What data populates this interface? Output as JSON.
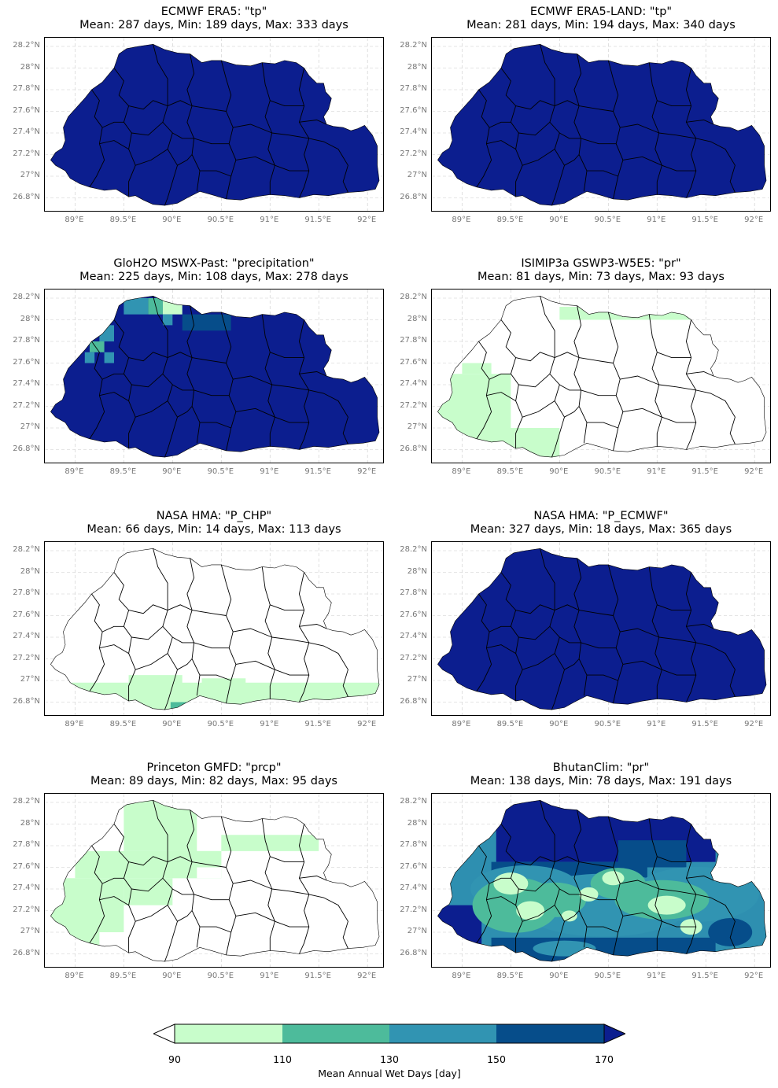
{
  "panels": [
    {
      "line1": "ECMWF ERA5: \"tp\"",
      "line2": "Mean: 287 days, Min: 189 days, Max: 333 days",
      "fill": "#0c1e8f",
      "style": "full"
    },
    {
      "line1": "ECMWF ERA5-LAND: \"tp\"",
      "line2": "Mean: 281 days, Min: 194 days, Max: 340 days",
      "fill": "#0c1e8f",
      "style": "full"
    },
    {
      "line1": "GloH2O MSWX-Past: \"precipitation\"",
      "line2": "Mean: 225 days, Min: 108 days, Max: 278 days",
      "fill": "#0c1e8f",
      "style": "mswx"
    },
    {
      "line1": "ISIMIP3a GSWP3-W5E5: \"pr\"",
      "line2": "Mean: 81 days, Min: 73 days, Max: 93 days",
      "fill": "#ffffff",
      "style": "isimip"
    },
    {
      "line1": "NASA HMA: \"P_CHP\"",
      "line2": "Mean: 66 days, Min: 14 days, Max: 113 days",
      "fill": "#ffffff",
      "style": "chp"
    },
    {
      "line1": "NASA HMA: \"P_ECMWF\"",
      "line2": "Mean: 327 days, Min: 18 days, Max: 365 days",
      "fill": "#0c1e8f",
      "style": "full"
    },
    {
      "line1": "Princeton GMFD: \"prcp\"",
      "line2": "Mean: 89 days, Min: 82 days, Max: 95 days",
      "fill": "#ffffff",
      "style": "gmfd"
    },
    {
      "line1": "BhutanClim: \"pr\"",
      "line2": "Mean: 138 days, Min: 78 days, Max: 191 days",
      "fill": "#2e8fb0",
      "style": "bhutan"
    }
  ],
  "axes": {
    "yticks": [
      "28.2°N",
      "28°N",
      "27.8°N",
      "27.6°N",
      "27.4°N",
      "27.2°N",
      "27°N",
      "26.8°N"
    ],
    "xticks": [
      "89°E",
      "89.5°E",
      "90°E",
      "90.5°E",
      "91°E",
      "91.5°E",
      "92°E"
    ]
  },
  "colorbar": {
    "ticks": [
      "90",
      "110",
      "130",
      "150",
      "170"
    ],
    "label": "Mean Annual Wet Days [day]",
    "colors": [
      "#c8fdcb",
      "#4dbb9b",
      "#3194b2",
      "#064d8a",
      "#0c1e8f"
    ],
    "under_color": "#ffffff",
    "over_color": "#0c1e8f"
  }
}
